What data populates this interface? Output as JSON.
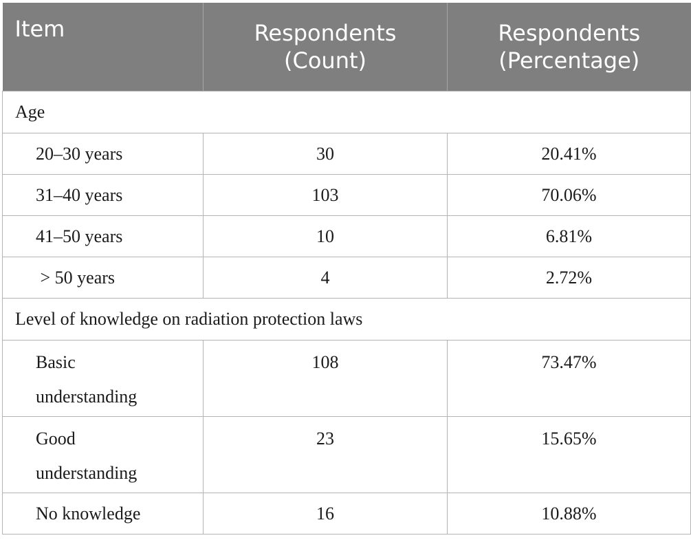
{
  "table": {
    "headers": {
      "item": "Item",
      "count_line1": "Respondents",
      "count_line2": "(Count)",
      "pct_line1": "Respondents",
      "pct_line2": "(Percentage)"
    },
    "age": {
      "title": "Age",
      "rows": [
        {
          "label": "20–30 years",
          "count": "30",
          "pct": "20.41%"
        },
        {
          "label": "31–40 years",
          "count": "103",
          "pct": "70.06%"
        },
        {
          "label": "41–50 years",
          "count": "10",
          "pct": "6.81%"
        },
        {
          "label": " > 50 years",
          "count": "4",
          "pct": "2.72%"
        }
      ]
    },
    "knowledge": {
      "title": "Level of knowledge on radiation protection laws",
      "rows": [
        {
          "label_line1": "Basic",
          "label_line2": "understanding",
          "count": "108",
          "pct": "73.47%"
        },
        {
          "label_line1": "Good",
          "label_line2": "understanding",
          "count": "23",
          "pct": "15.65%"
        },
        {
          "label": "No knowledge",
          "count": "16",
          "pct": "10.88%"
        }
      ]
    }
  }
}
